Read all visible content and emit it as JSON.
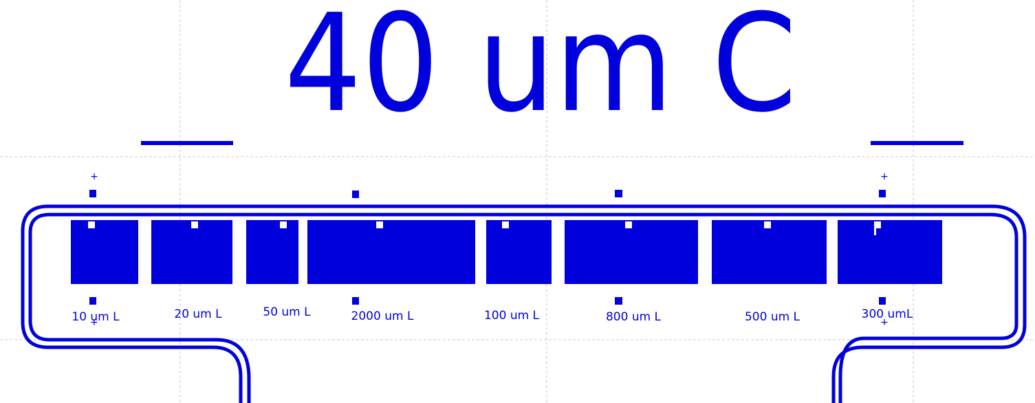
{
  "title": "40 um C",
  "colors": {
    "metal": "#0000dd",
    "grid": "#c8c8c8",
    "background": "#ffffff",
    "via": "#ffffff"
  },
  "markers": {
    "cross_top_left": "+",
    "cross_top_right": "+",
    "cross_bottom_left": "+",
    "cross_bottom_right": "+"
  },
  "resistors": [
    {
      "label": "10 um L"
    },
    {
      "label": "20 um L"
    },
    {
      "label": "50 um L"
    },
    {
      "label": "2000 um L"
    },
    {
      "label": "100 um L"
    },
    {
      "label": "800 um L"
    },
    {
      "label": "500 um L"
    },
    {
      "label": "300 umL"
    }
  ]
}
